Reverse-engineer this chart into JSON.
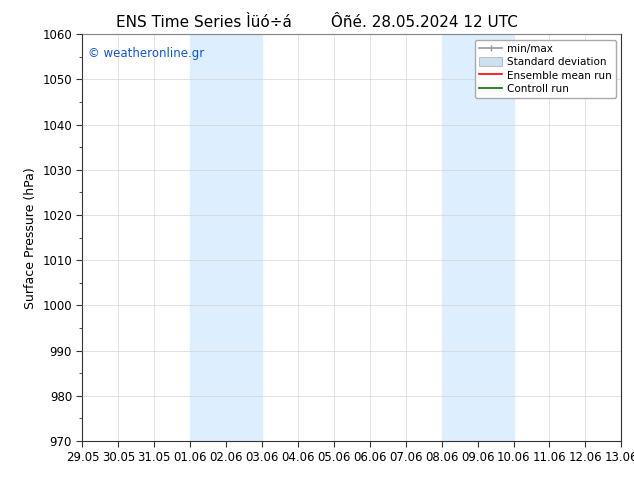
{
  "title_left": "ENS Time Series Ìüó÷á",
  "title_right": "Ôñé. 28.05.2024 12 UTC",
  "ylabel": "Surface Pressure (hPa)",
  "ylim": [
    970,
    1060
  ],
  "yticks": [
    970,
    980,
    990,
    1000,
    1010,
    1020,
    1030,
    1040,
    1050,
    1060
  ],
  "xtick_labels": [
    "29.05",
    "30.05",
    "31.05",
    "01.06",
    "02.06",
    "03.06",
    "04.06",
    "05.06",
    "06.06",
    "07.06",
    "08.06",
    "09.06",
    "10.06",
    "11.06",
    "12.06",
    "13.06"
  ],
  "shaded_regions": [
    {
      "xstart": 3,
      "xend": 5,
      "color": "#ddeeff"
    },
    {
      "xstart": 10,
      "xend": 12,
      "color": "#ddeeff"
    }
  ],
  "watermark": "© weatheronline.gr",
  "watermark_color": "#1155cc",
  "bg_color": "#ffffff",
  "plot_bg_color": "#ffffff",
  "legend_items": [
    {
      "label": "min/max",
      "color": "#999999",
      "lw": 1.2,
      "style": "solid"
    },
    {
      "label": "Standard deviation",
      "color": "#cce0f0",
      "lw": 8,
      "style": "solid"
    },
    {
      "label": "Ensemble mean run",
      "color": "#ff0000",
      "lw": 1.2,
      "style": "solid"
    },
    {
      "label": "Controll run",
      "color": "#007700",
      "lw": 1.2,
      "style": "solid"
    }
  ],
  "title_fontsize": 11,
  "tick_fontsize": 8.5,
  "ylabel_fontsize": 9,
  "watermark_fontsize": 8.5
}
